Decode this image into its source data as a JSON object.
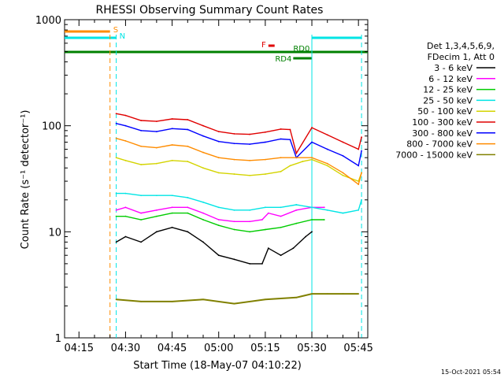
{
  "chart_data": {
    "type": "line",
    "title": "RHESSI Observing Summary Count Rates",
    "xlabel": "Start Time (18-May-07 04:10:22)",
    "ylabel": "Count Rate (s⁻¹ detector⁻¹)",
    "y_scale": "log",
    "ylim": [
      1,
      1000
    ],
    "xlim": [
      "04:10:22",
      "05:48:00"
    ],
    "x_ticks": [
      "04:15",
      "04:30",
      "04:45",
      "05:00",
      "05:15",
      "05:30",
      "05:45"
    ],
    "y_ticks": [
      "1",
      "10",
      "100",
      "1000"
    ],
    "legend_header": [
      "Det 1,3,4,5,6,9,",
      "FDecim 1, Att 0"
    ],
    "legend_placement": "right",
    "series": [
      {
        "name": "3 - 6 keV",
        "color": "#000000",
        "x": [
          "04:27",
          "04:30",
          "04:35",
          "04:40",
          "04:45",
          "04:50",
          "04:55",
          "05:00",
          "05:05",
          "05:10",
          "05:14",
          "05:16",
          "05:20",
          "05:24",
          "05:28",
          "05:30"
        ],
        "values": [
          8,
          9,
          8,
          10,
          11,
          10,
          8,
          6,
          5.5,
          5,
          5,
          7,
          6,
          7,
          9,
          10
        ]
      },
      {
        "name": "6 - 12 keV",
        "color": "#ff00ff",
        "x": [
          "04:27",
          "04:30",
          "04:35",
          "04:40",
          "04:45",
          "04:50",
          "04:55",
          "05:00",
          "05:05",
          "05:10",
          "05:14",
          "05:16",
          "05:20",
          "05:25",
          "05:30",
          "05:34"
        ],
        "values": [
          16,
          17,
          15,
          16,
          17,
          17,
          15,
          13,
          12.5,
          12.5,
          13,
          15,
          14,
          16,
          17,
          17
        ]
      },
      {
        "name": "12 - 25 keV",
        "color": "#00cc00",
        "x": [
          "04:27",
          "04:30",
          "04:35",
          "04:40",
          "04:45",
          "04:50",
          "04:55",
          "05:00",
          "05:05",
          "05:10",
          "05:15",
          "05:20",
          "05:25",
          "05:30",
          "05:34"
        ],
        "values": [
          14,
          14,
          13,
          14,
          15,
          15,
          13,
          11.5,
          10.5,
          10,
          10.5,
          11,
          12,
          13,
          13
        ]
      },
      {
        "name": "25 - 50 keV",
        "color": "#00e5e5",
        "x": [
          "04:27",
          "04:30",
          "04:35",
          "04:40",
          "04:45",
          "04:50",
          "04:55",
          "05:00",
          "05:05",
          "05:10",
          "05:15",
          "05:20",
          "05:25",
          "05:30",
          "05:35",
          "05:40",
          "05:45",
          "05:46"
        ],
        "values": [
          23,
          23,
          22,
          22,
          22,
          21,
          19,
          17,
          16,
          16,
          17,
          17,
          18,
          17,
          16,
          15,
          16,
          20
        ]
      },
      {
        "name": "50 - 100 keV",
        "color": "#d4d400",
        "x": [
          "04:27",
          "04:30",
          "04:35",
          "04:40",
          "04:45",
          "04:50",
          "04:55",
          "05:00",
          "05:05",
          "05:10",
          "05:15",
          "05:20",
          "05:23",
          "05:27",
          "05:30",
          "05:35",
          "05:40",
          "05:45",
          "05:46"
        ],
        "values": [
          50,
          47,
          43,
          44,
          47,
          46,
          40,
          36,
          35,
          34,
          35,
          37,
          42,
          46,
          48,
          42,
          34,
          30,
          36
        ]
      },
      {
        "name": "100 - 300 keV",
        "color": "#e00000",
        "x": [
          "04:27",
          "04:30",
          "04:35",
          "04:40",
          "04:45",
          "04:50",
          "04:55",
          "05:00",
          "05:05",
          "05:10",
          "05:15",
          "05:20",
          "05:23",
          "05:25",
          "05:30",
          "05:35",
          "05:40",
          "05:45",
          "05:46"
        ],
        "values": [
          130,
          125,
          112,
          110,
          116,
          114,
          100,
          88,
          84,
          83,
          87,
          93,
          92,
          55,
          96,
          82,
          70,
          60,
          78
        ]
      },
      {
        "name": "300 - 800 keV",
        "color": "#0000ff",
        "x": [
          "04:27",
          "04:30",
          "04:35",
          "04:40",
          "04:45",
          "04:50",
          "04:55",
          "05:00",
          "05:05",
          "05:10",
          "05:15",
          "05:20",
          "05:23",
          "05:25",
          "05:30",
          "05:35",
          "05:40",
          "05:45",
          "05:46"
        ],
        "values": [
          105,
          100,
          90,
          88,
          94,
          92,
          80,
          71,
          68,
          67,
          70,
          75,
          74,
          50,
          70,
          60,
          52,
          42,
          58
        ]
      },
      {
        "name": "800 - 7000 keV",
        "color": "#ff8c00",
        "x": [
          "04:27",
          "04:30",
          "04:35",
          "04:40",
          "04:45",
          "04:50",
          "04:55",
          "05:00",
          "05:05",
          "05:10",
          "05:15",
          "05:20",
          "05:25",
          "05:30",
          "05:35",
          "05:40",
          "05:45",
          "05:46"
        ],
        "values": [
          76,
          72,
          64,
          62,
          66,
          64,
          56,
          50,
          48,
          47,
          48,
          50,
          50,
          50,
          44,
          36,
          28,
          36
        ]
      },
      {
        "name": "7000 - 15000 keV",
        "color": "#808000",
        "x": [
          "04:27",
          "04:35",
          "04:45",
          "04:55",
          "05:05",
          "05:15",
          "05:25",
          "05:30",
          "05:35",
          "05:40",
          "05:45"
        ],
        "values": [
          2.3,
          2.2,
          2.2,
          2.3,
          2.1,
          2.3,
          2.4,
          2.6,
          2.6,
          2.6,
          2.6
        ]
      }
    ],
    "flags": [
      {
        "label": "S",
        "color": "#ff8c00",
        "start": "04:10:22",
        "end": "04:25"
      },
      {
        "label": "N",
        "color": "#00e5e5",
        "start": "04:10:22",
        "end": "04:27",
        "start2": "05:30",
        "end2": "05:46"
      },
      {
        "label": "F",
        "color": "#e00000",
        "start": "05:16",
        "end": "05:18"
      },
      {
        "label": "RD0",
        "color": "#008000",
        "start": "04:10:22",
        "end": "05:48"
      },
      {
        "label": "RD4",
        "color": "#008000",
        "start": "05:24",
        "end": "05:30"
      }
    ],
    "vertical_markers": [
      {
        "color": "#ff8c00",
        "style": "dashed",
        "x": "04:25"
      },
      {
        "color": "#00e5e5",
        "style": "dashed",
        "x": "04:27"
      },
      {
        "color": "#00e5e5",
        "style": "solid",
        "x": "05:30"
      },
      {
        "color": "#00e5e5",
        "style": "dashed",
        "x": "05:46"
      }
    ],
    "footer": "15-Oct-2021 05:54"
  }
}
